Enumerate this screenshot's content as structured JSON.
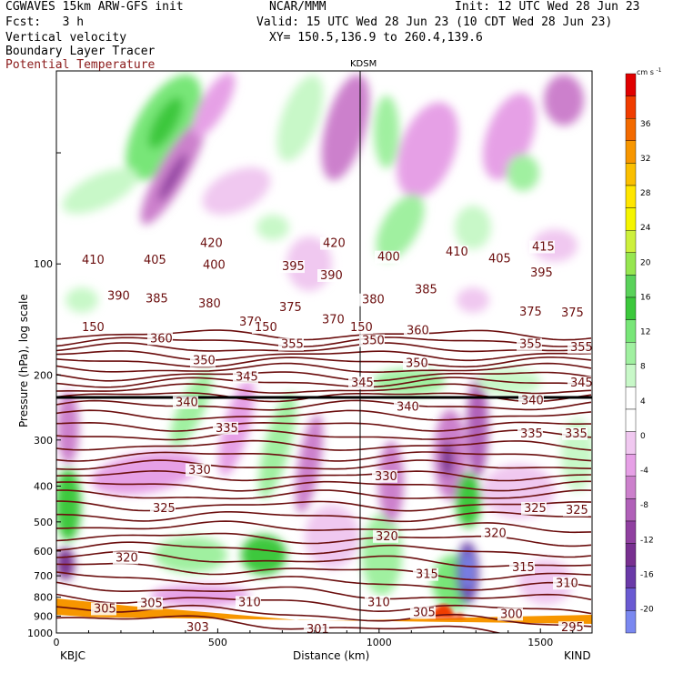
{
  "header": {
    "model": "CGWAVES 15km ARW-GFS init",
    "org": "NCAR/MMM",
    "init": "Init: 12 UTC Wed 28 Jun 23",
    "fcst": "Fcst:   3 h",
    "valid": "Valid: 15 UTC Wed 28 Jun 23 (10 CDT Wed 28 Jun 23)",
    "xy": "XY= 150.5,136.9 to 260.4,139.6",
    "fields": [
      "Vertical velocity",
      "Boundary Layer Tracer",
      "Potential Temperature"
    ],
    "field_colors": [
      "#000000",
      "#000000",
      "#8b1a1a"
    ]
  },
  "chart_data": {
    "type": "heatmap",
    "title": "",
    "xlabel": "Distance (km)",
    "ylabel": "Pressure (hPa), log scale",
    "x_ticks": [
      "0",
      "500",
      "1000",
      "1500"
    ],
    "y_ticks": [
      "100",
      "200",
      "300",
      "400",
      "500",
      "600",
      "700",
      "800",
      "900",
      "1000"
    ],
    "left_endpoint": "KBJC",
    "right_endpoint": "KIND",
    "midpoint_label": "KDSM",
    "midpoint_x_km": 940,
    "xlim": [
      0,
      1660
    ],
    "ylim_hpa": [
      1000,
      30
    ],
    "colorbar": {
      "unit": "cm s",
      "unit_sup": "-1",
      "labels": [
        "36",
        "32",
        "28",
        "24",
        "20",
        "16",
        "12",
        "8",
        "4",
        "0",
        "-4",
        "-8",
        "-12",
        "-16",
        "-20"
      ],
      "colors": [
        "#e00000",
        "#f03c00",
        "#f36a00",
        "#f79600",
        "#fabf00",
        "#ffe600",
        "#f5f500",
        "#cdf03c",
        "#96e650",
        "#5ad25a",
        "#3cc83c",
        "#78e678",
        "#a0f0a0",
        "#c8f8c8",
        "#ffffff",
        "#ffffff",
        "#f0c8f0",
        "#e6a0e6",
        "#cc80cc",
        "#b060b8",
        "#9040a0",
        "#783090",
        "#6a3aa8",
        "#6a5ad2",
        "#7a88f0"
      ]
    },
    "theta_labels": [
      {
        "t": "420",
        "x": 220,
        "p": 90
      },
      {
        "t": "420",
        "x": 355,
        "p": 90
      },
      {
        "t": "415",
        "x": 585,
        "p": 92
      },
      {
        "t": "410",
        "x": 90,
        "p": 100
      },
      {
        "t": "405",
        "x": 158,
        "p": 100
      },
      {
        "t": "400",
        "x": 223,
        "p": 103
      },
      {
        "t": "395",
        "x": 310,
        "p": 104
      },
      {
        "t": "390",
        "x": 352,
        "p": 110
      },
      {
        "t": "400",
        "x": 415,
        "p": 98
      },
      {
        "t": "410",
        "x": 490,
        "p": 95
      },
      {
        "t": "405",
        "x": 537,
        "p": 99
      },
      {
        "t": "395",
        "x": 583,
        "p": 108
      },
      {
        "t": "390",
        "x": 118,
        "p": 125
      },
      {
        "t": "385",
        "x": 160,
        "p": 127
      },
      {
        "t": "380",
        "x": 218,
        "p": 131
      },
      {
        "t": "375",
        "x": 307,
        "p": 134
      },
      {
        "t": "380",
        "x": 398,
        "p": 128
      },
      {
        "t": "385",
        "x": 456,
        "p": 120
      },
      {
        "t": "375",
        "x": 571,
        "p": 138
      },
      {
        "t": "375",
        "x": 617,
        "p": 139
      },
      {
        "t": "370",
        "x": 263,
        "p": 147
      },
      {
        "t": "370",
        "x": 354,
        "p": 145
      },
      {
        "t": "360",
        "x": 165,
        "p": 163
      },
      {
        "t": "360",
        "x": 447,
        "p": 155
      },
      {
        "t": "355",
        "x": 309,
        "p": 169
      },
      {
        "t": "350",
        "x": 398,
        "p": 165
      },
      {
        "t": "355",
        "x": 571,
        "p": 169
      },
      {
        "t": "355",
        "x": 627,
        "p": 172
      },
      {
        "t": "350",
        "x": 212,
        "p": 187
      },
      {
        "t": "350",
        "x": 446,
        "p": 190
      },
      {
        "t": "345",
        "x": 259,
        "p": 207
      },
      {
        "t": "345",
        "x": 386,
        "p": 215
      },
      {
        "t": "345",
        "x": 627,
        "p": 215
      },
      {
        "t": "340",
        "x": 193,
        "p": 243
      },
      {
        "t": "340",
        "x": 436,
        "p": 250
      },
      {
        "t": "340",
        "x": 573,
        "p": 240
      },
      {
        "t": "335",
        "x": 237,
        "p": 285
      },
      {
        "t": "335",
        "x": 572,
        "p": 295
      },
      {
        "t": "335",
        "x": 621,
        "p": 295
      },
      {
        "t": "330",
        "x": 207,
        "p": 370
      },
      {
        "t": "330",
        "x": 412,
        "p": 385
      },
      {
        "t": "325",
        "x": 168,
        "p": 470
      },
      {
        "t": "325",
        "x": 576,
        "p": 470
      },
      {
        "t": "325",
        "x": 622,
        "p": 475
      },
      {
        "t": "320",
        "x": 413,
        "p": 560
      },
      {
        "t": "320",
        "x": 532,
        "p": 550
      },
      {
        "t": "320",
        "x": 127,
        "p": 640
      },
      {
        "t": "315",
        "x": 457,
        "p": 710
      },
      {
        "t": "315",
        "x": 563,
        "p": 680
      },
      {
        "t": "310",
        "x": 611,
        "p": 750
      },
      {
        "t": "310",
        "x": 262,
        "p": 845
      },
      {
        "t": "310",
        "x": 404,
        "p": 845
      },
      {
        "t": "305",
        "x": 154,
        "p": 850
      },
      {
        "t": "305",
        "x": 454,
        "p": 900
      },
      {
        "t": "300",
        "x": 550,
        "p": 910
      },
      {
        "t": "305",
        "x": 103,
        "p": 880
      },
      {
        "t": "303",
        "x": 205,
        "p": 990
      },
      {
        "t": "301",
        "x": 337,
        "p": 1000
      },
      {
        "t": "295",
        "x": 617,
        "p": 990
      },
      {
        "t": "150",
        "x": 90,
        "p": 152
      },
      {
        "t": "150",
        "x": 280,
        "p": 152
      },
      {
        "t": "150",
        "x": 385,
        "p": 152
      }
    ]
  }
}
